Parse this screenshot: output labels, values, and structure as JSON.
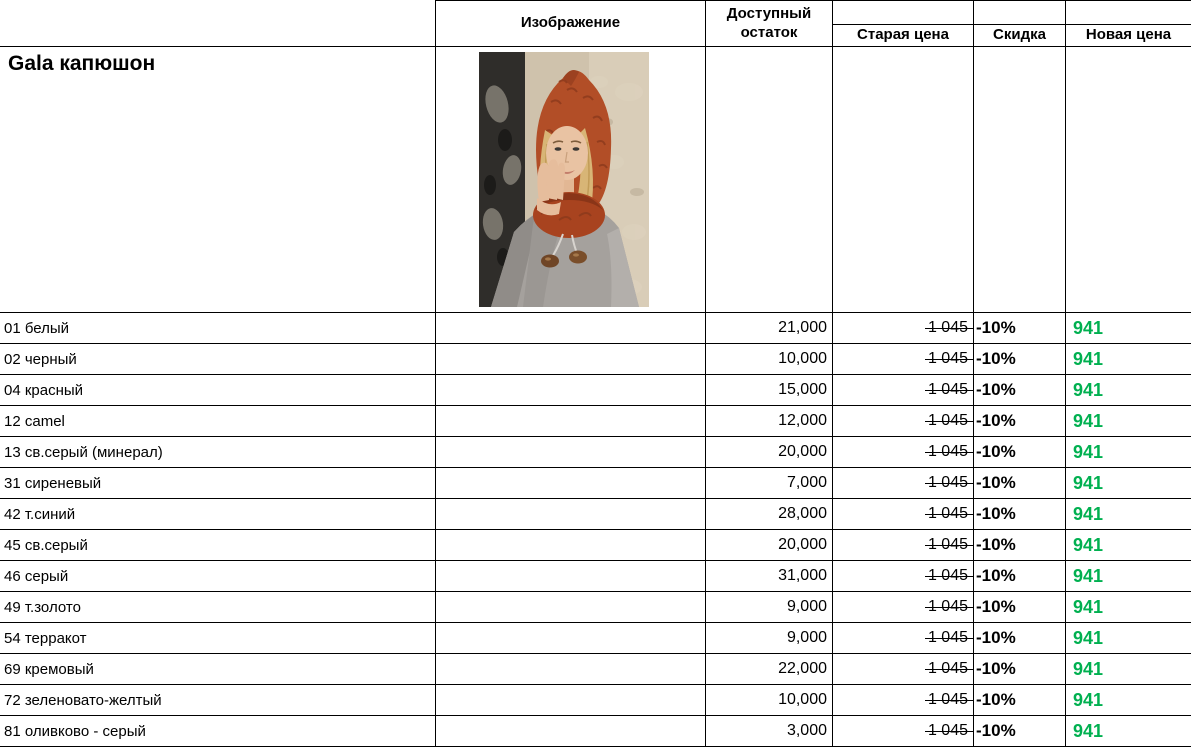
{
  "title": "Gala капюшон",
  "header": {
    "image": "Изображение",
    "stock_line1": "Доступный",
    "stock_line2": "остаток",
    "old_price": "Старая цена",
    "discount": "Скидка",
    "new_price": "Новая цена"
  },
  "photo_icon": "model-in-orange-knitted-hood-photo",
  "colors": {
    "new_price_green": "#00B050",
    "grid_border": "#000000",
    "hood_orange": "#b24e27"
  },
  "rows": [
    {
      "name": "01 белый",
      "stock": "21,000",
      "old_price": "1 045",
      "discount": "-10%",
      "new_price": "941"
    },
    {
      "name": "02 черный",
      "stock": "10,000",
      "old_price": "1 045",
      "discount": "-10%",
      "new_price": "941"
    },
    {
      "name": "04 красный",
      "stock": "15,000",
      "old_price": "1 045",
      "discount": "-10%",
      "new_price": "941"
    },
    {
      "name": "12 camel",
      "stock": "12,000",
      "old_price": "1 045",
      "discount": "-10%",
      "new_price": "941"
    },
    {
      "name": "13 св.серый (минерал)",
      "stock": "20,000",
      "old_price": "1 045",
      "discount": "-10%",
      "new_price": "941"
    },
    {
      "name": "31 сиреневый",
      "stock": "7,000",
      "old_price": "1 045",
      "discount": "-10%",
      "new_price": "941"
    },
    {
      "name": "42 т.синий",
      "stock": "28,000",
      "old_price": "1 045",
      "discount": "-10%",
      "new_price": "941"
    },
    {
      "name": "45 св.серый",
      "stock": "20,000",
      "old_price": "1 045",
      "discount": "-10%",
      "new_price": "941"
    },
    {
      "name": "46 серый",
      "stock": "31,000",
      "old_price": "1 045",
      "discount": "-10%",
      "new_price": "941"
    },
    {
      "name": "49 т.золото",
      "stock": "9,000",
      "old_price": "1 045",
      "discount": "-10%",
      "new_price": "941"
    },
    {
      "name": "54 терракот",
      "stock": "9,000",
      "old_price": "1 045",
      "discount": "-10%",
      "new_price": "941"
    },
    {
      "name": "69 кремовый",
      "stock": "22,000",
      "old_price": "1 045",
      "discount": "-10%",
      "new_price": "941"
    },
    {
      "name": "72 зеленовато-желтый",
      "stock": "10,000",
      "old_price": "1 045",
      "discount": "-10%",
      "new_price": "941"
    },
    {
      "name": "81 оливково - серый",
      "stock": "3,000",
      "old_price": "1 045",
      "discount": "-10%",
      "new_price": "941"
    }
  ]
}
